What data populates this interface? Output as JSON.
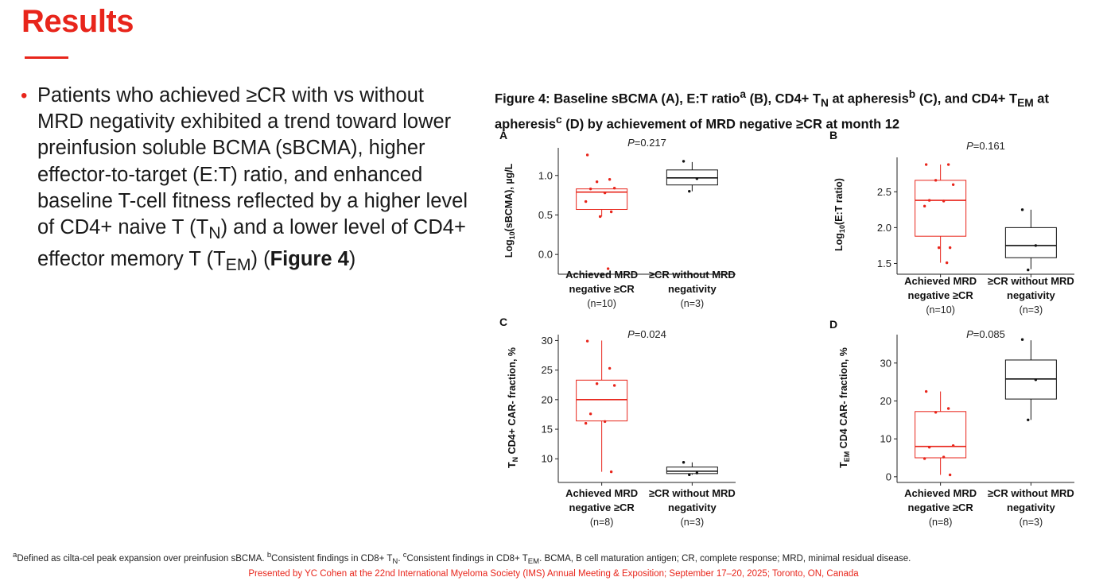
{
  "page": {
    "title": "Results",
    "accent_color": "#e8251b",
    "bullet": {
      "dot": "•",
      "t1": "Patients who achieved ≥CR with vs without MRD negativity exhibited a trend toward lower preinfusion soluble BCMA (sBCMA), higher effector-to-target (E:T) ratio, and enhanced baseline T-cell fitness reflected by a higher level of CD4+ naive T (T",
      "s1": "N",
      "t2": ") and a lower level of CD4+ effector memory T (T",
      "s2": "EM",
      "t3": ") (",
      "bold": "Figure 4",
      "t4": ")"
    },
    "figure_caption": {
      "c1": "Figure 4: Baseline sBCMA (A), E:T ratio",
      "sa": "a",
      "c2": " (B), CD4+ T",
      "subN": "N",
      "c3": " at apheresis",
      "sb": "b",
      "c4": " (C), and CD4+ T",
      "subEM": "EM",
      "c5": " at apheresis",
      "sc": "c",
      "c6": " (D) by achievement of MRD negative ≥CR at month 12"
    },
    "footnote": {
      "f1": "a",
      "f2": "Defined as cilta-cel peak expansion over preinfusion sBCMA. ",
      "f3": "b",
      "f4": "Consistent findings in CD8+ T",
      "f5": "N",
      "f6": ". ",
      "f7": "c",
      "f8": "Consistent findings in CD8+ T",
      "f9": "EM",
      "f10": ". BCMA, B cell maturation antigen; CR, complete response; MRD, minimal residual disease."
    },
    "presented_by": "Presented by YC Cohen at the 22nd International Myeloma Society (IMS) Annual Meeting & Exposition; September 17–20, 2025; Toronto, ON, Canada"
  },
  "chart_data": [
    {
      "panel": "A",
      "type": "box",
      "p_label": "P",
      "p_value": "=0.217",
      "ylabel": {
        "pre": "Log",
        "sub": "10",
        "post": "(sBCMA), µg/L"
      },
      "ylim": [
        -0.25,
        1.35
      ],
      "yticks": [
        0.0,
        0.5,
        1.0
      ],
      "ytick_labels": [
        "0.0",
        "0.5",
        "1.0"
      ],
      "groups": [
        {
          "label1": "Achieved MRD",
          "label2": "negative ≥CR",
          "n": "(n=10)",
          "color": "#e8251b",
          "q1": 0.57,
          "median": 0.79,
          "q3": 0.83,
          "whisker_low": 0.48,
          "whisker_high": 0.83,
          "points": [
            1.26,
            0.95,
            0.92,
            0.84,
            0.83,
            0.78,
            0.67,
            0.54,
            0.48,
            -0.18
          ]
        },
        {
          "label1": "≥CR without MRD",
          "label2": "negativity",
          "n": "(n=3)",
          "color": "#111111",
          "q1": 0.88,
          "median": 0.97,
          "q3": 1.07,
          "whisker_low": 0.8,
          "whisker_high": 1.17,
          "points": [
            1.18,
            0.96,
            0.8
          ]
        }
      ]
    },
    {
      "panel": "B",
      "type": "box",
      "p_label": "P",
      "p_value": "=0.161",
      "ylabel": {
        "pre": "Log",
        "sub": "10",
        "post": "(E:T ratio)"
      },
      "ylim": [
        1.35,
        2.98
      ],
      "yticks": [
        1.5,
        2.0,
        2.5
      ],
      "ytick_labels": [
        "1.5",
        "2.0",
        "2.5"
      ],
      "groups": [
        {
          "label1": "Achieved MRD",
          "label2": "negative ≥CR",
          "n": "(n=10)",
          "color": "#e8251b",
          "q1": 1.88,
          "median": 2.38,
          "q3": 2.66,
          "whisker_low": 1.51,
          "whisker_high": 2.88,
          "points": [
            2.88,
            2.88,
            2.66,
            2.6,
            2.38,
            2.37,
            2.3,
            1.72,
            1.72,
            1.51
          ]
        },
        {
          "label1": "≥CR without MRD",
          "label2": "negativity",
          "n": "(n=3)",
          "color": "#111111",
          "q1": 1.58,
          "median": 1.75,
          "q3": 2.0,
          "whisker_low": 1.42,
          "whisker_high": 2.25,
          "points": [
            2.25,
            1.75,
            1.41
          ]
        }
      ]
    },
    {
      "panel": "C",
      "type": "box",
      "p_label": "P",
      "p_value": "=0.024",
      "ylabel": {
        "pre": "T",
        "sub": "N",
        "post": " CD4+ CAR- fraction, %"
      },
      "ylim": [
        6.0,
        31.0
      ],
      "yticks": [
        10,
        15,
        20,
        25,
        30
      ],
      "ytick_labels": [
        "10",
        "15",
        "20",
        "25",
        "30"
      ],
      "groups": [
        {
          "label1": "Achieved MRD",
          "label2": "negative ≥CR",
          "n": "(n=8)",
          "color": "#e8251b",
          "q1": 16.4,
          "median": 20.0,
          "q3": 23.3,
          "whisker_low": 7.8,
          "whisker_high": 30.0,
          "points": [
            29.9,
            25.3,
            22.7,
            22.4,
            17.6,
            16.3,
            16.0,
            7.8
          ]
        },
        {
          "label1": "≥CR without MRD",
          "label2": "negativity",
          "n": "(n=3)",
          "color": "#111111",
          "q1": 7.5,
          "median": 7.9,
          "q3": 8.6,
          "whisker_low": 7.3,
          "whisker_high": 9.4,
          "points": [
            9.4,
            7.6,
            7.3
          ]
        }
      ]
    },
    {
      "panel": "D",
      "type": "box",
      "p_label": "P",
      "p_value": "=0.085",
      "ylabel": {
        "pre": "T",
        "sub": "EM",
        "post": " CD4 CAR- fraction, %"
      },
      "ylim": [
        -1.5,
        37.5
      ],
      "yticks": [
        0,
        10,
        20,
        30
      ],
      "ytick_labels": [
        "0",
        "10",
        "20",
        "30"
      ],
      "groups": [
        {
          "label1": "Achieved MRD",
          "label2": "negative ≥CR",
          "n": "(n=8)",
          "color": "#e8251b",
          "q1": 5.0,
          "median": 8.0,
          "q3": 17.2,
          "whisker_low": 0.5,
          "whisker_high": 22.5,
          "points": [
            22.5,
            18.0,
            17.0,
            8.2,
            7.8,
            5.2,
            4.8,
            0.5
          ]
        },
        {
          "label1": "≥CR without MRD",
          "label2": "negativity",
          "n": "(n=3)",
          "color": "#111111",
          "q1": 20.5,
          "median": 25.8,
          "q3": 30.8,
          "whisker_low": 15.0,
          "whisker_high": 36.0,
          "points": [
            36.2,
            25.6,
            15.0
          ]
        }
      ]
    }
  ]
}
